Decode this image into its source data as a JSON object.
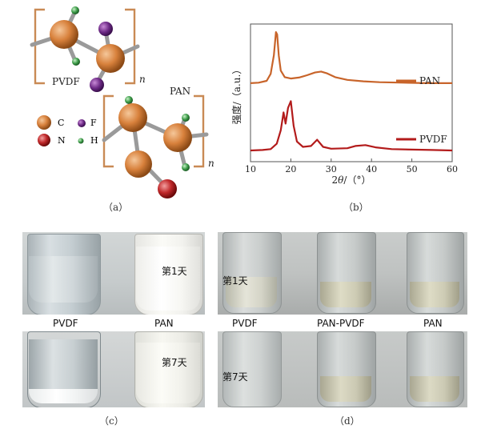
{
  "panel_a": {
    "caption": "（a）",
    "pvdf_label": "PVDF",
    "pan_label": "PAN",
    "subscript_n": "n",
    "legend": {
      "c": "C",
      "f": "F",
      "n": "N",
      "h": "H"
    }
  },
  "panel_b": {
    "caption": "（b）",
    "ylabel": "强度/（a.u.）",
    "xlabel": "2θ/（°）",
    "xlabel_pre": "2",
    "xlabel_theta": "θ",
    "xlabel_post": "/（°）",
    "colors": {
      "PAN": "#c8642a",
      "PVDF": "#b31b1b"
    }
  },
  "chart_data": {
    "type": "line",
    "title": "",
    "xlabel": "2θ/（°）",
    "ylabel": "强度/（a.u.）",
    "xlim": [
      10,
      60
    ],
    "xticks": [
      10,
      20,
      30,
      40,
      50,
      60
    ],
    "grid": false,
    "legend_placement": "inline-right",
    "series": [
      {
        "name": "PAN",
        "x": [
          10,
          12,
          14,
          15,
          15.8,
          16.3,
          16.6,
          17.0,
          17.5,
          18.5,
          20,
          22,
          24,
          26,
          27.5,
          29,
          31,
          34,
          38,
          42,
          48,
          54,
          60
        ],
        "y": [
          0.45,
          0.46,
          0.5,
          0.65,
          1.05,
          1.55,
          1.5,
          1.05,
          0.72,
          0.58,
          0.55,
          0.57,
          0.62,
          0.68,
          0.7,
          0.66,
          0.58,
          0.52,
          0.49,
          0.47,
          0.46,
          0.45,
          0.45
        ]
      },
      {
        "name": "PVDF",
        "x": [
          10,
          13,
          15,
          16.5,
          17.5,
          18.2,
          18.7,
          19.3,
          20.0,
          20.7,
          21.5,
          23,
          25,
          26.5,
          28,
          30,
          34,
          36,
          38.5,
          41,
          45,
          50,
          55,
          60
        ],
        "y": [
          0.0,
          0.01,
          0.03,
          0.15,
          0.45,
          0.85,
          0.6,
          0.95,
          1.1,
          0.55,
          0.2,
          0.08,
          0.1,
          0.24,
          0.08,
          0.04,
          0.05,
          0.1,
          0.12,
          0.07,
          0.03,
          0.02,
          0.01,
          0.0
        ]
      }
    ]
  },
  "panel_c": {
    "caption": "（c）",
    "labels": [
      "PVDF",
      "PAN"
    ],
    "day1": "第1天",
    "day7": "第7天"
  },
  "panel_d": {
    "caption": "（d）",
    "labels": [
      "PVDF",
      "PAN-PVDF",
      "PAN"
    ],
    "day1": "第1天",
    "day7": "第7天"
  }
}
